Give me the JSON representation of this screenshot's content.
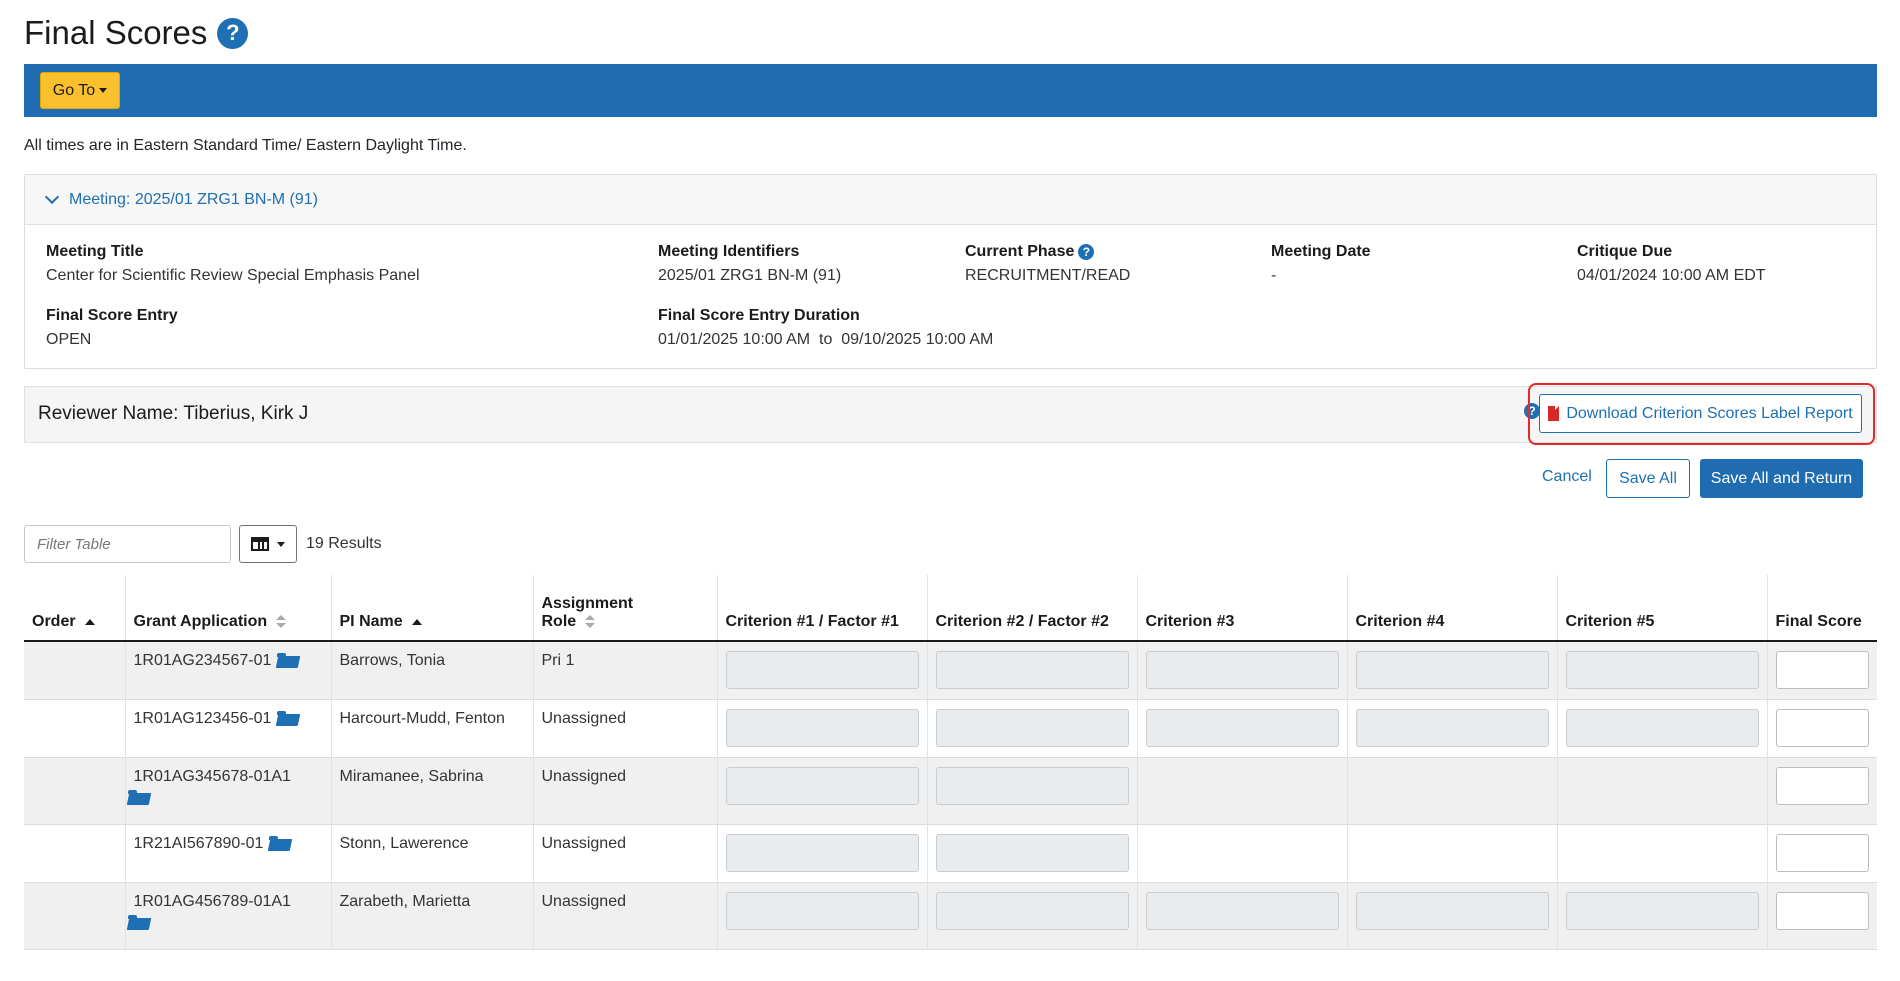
{
  "page": {
    "title": "Final Scores"
  },
  "toolbar": {
    "goto_label": "Go To"
  },
  "timezone_note": "All times are in Eastern Standard Time/ Eastern Daylight Time.",
  "meeting": {
    "header": "Meeting:  2025/01 ZRG1 BN-M (91)",
    "title_label": "Meeting Title",
    "title_value": "Center for Scientific Review Special Emphasis Panel",
    "identifiers_label": "Meeting Identifiers",
    "identifiers_value": "2025/01 ZRG1 BN-M (91)",
    "phase_label": "Current Phase",
    "phase_value": "RECRUITMENT/READ",
    "date_label": "Meeting Date",
    "date_value": "-",
    "critique_label": "Critique Due",
    "critique_value": "04/01/2024 10:00 AM EDT",
    "entry_label": "Final Score Entry",
    "entry_value": "OPEN",
    "duration_label": "Final Score Entry Duration",
    "duration_value": "01/01/2025 10:00 AM  to  09/10/2025 10:00 AM"
  },
  "reviewer": {
    "name": "Reviewer Name: Tiberius, Kirk J",
    "report_button": "Download Criterion Scores Label Report"
  },
  "actions": {
    "cancel": "Cancel",
    "save_all": "Save All",
    "save_return": "Save All and Return"
  },
  "table_controls": {
    "filter_placeholder": "Filter Table",
    "results": "19 Results"
  },
  "table": {
    "headers": {
      "order": "Order",
      "grant": "Grant Application",
      "pi": "PI Name",
      "role": "Assignment Role",
      "c1": "Criterion #1 / Factor #1",
      "c2": "Criterion #2 / Factor #2",
      "c3": "Criterion #3",
      "c4": "Criterion #4",
      "c5": "Criterion #5",
      "final": "Final Score"
    },
    "rows": [
      {
        "order": "",
        "grant": "1R01AG234567-01",
        "pi": "Barrows, Tonia",
        "role": "Pri 1",
        "criteria": [
          true,
          true,
          true,
          true,
          true
        ]
      },
      {
        "order": "",
        "grant": "1R01AG123456-01",
        "pi": "Harcourt-Mudd, Fenton",
        "role": "Unassigned",
        "criteria": [
          true,
          true,
          true,
          true,
          true
        ]
      },
      {
        "order": "",
        "grant": "1R01AG345678-01A1",
        "pi": "Miramanee, Sabrina",
        "role": "Unassigned",
        "criteria": [
          true,
          true,
          false,
          false,
          false
        ]
      },
      {
        "order": "",
        "grant": "1R21AI567890-01",
        "pi": "Stonn, Lawerence",
        "role": "Unassigned",
        "criteria": [
          true,
          true,
          false,
          false,
          false
        ]
      },
      {
        "order": "",
        "grant": "1R01AG456789-01A1",
        "pi": "Zarabeth, Marietta",
        "role": "Unassigned",
        "criteria": [
          true,
          true,
          true,
          true,
          true
        ]
      }
    ]
  },
  "colors": {
    "primary": "#1f6cb1",
    "accent": "#fbc02d",
    "highlight": "#e3282e"
  },
  "icons": {
    "help": "question-circle-icon",
    "pdf": "file-pdf-icon",
    "folder": "folder-open-icon",
    "columns": "table-columns-icon"
  }
}
